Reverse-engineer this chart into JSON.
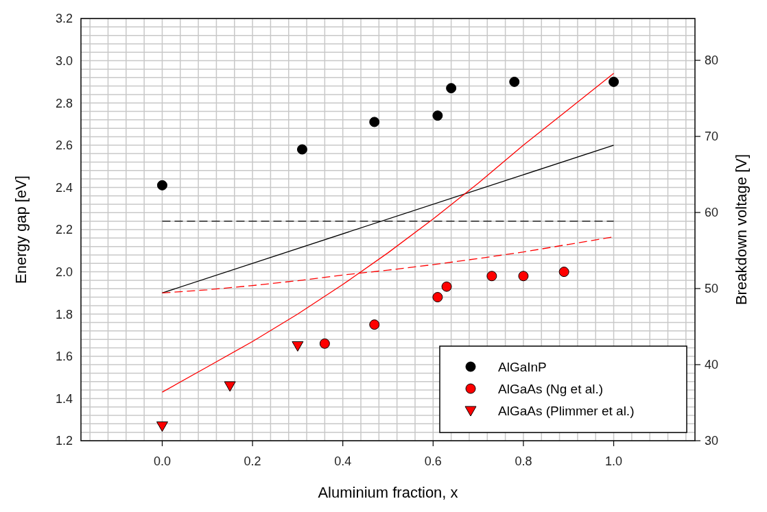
{
  "chart_data": {
    "type": "scatter",
    "xlabel": "Aluminium fraction, x",
    "ylabel": "Energy gap [eV]",
    "y2label": "Breakdown voltage [V]",
    "xlim": [
      -0.18,
      1.18
    ],
    "ylim": [
      1.2,
      3.2
    ],
    "y2lim": [
      30,
      85.5
    ],
    "xticks": [
      {
        "value": -0.16,
        "label": null
      },
      {
        "value": -0.12,
        "label": null
      },
      {
        "value": -0.08,
        "label": null
      },
      {
        "value": -0.04,
        "label": null
      },
      {
        "value": 0,
        "label": "0.0"
      },
      {
        "value": 0.04,
        "label": null
      },
      {
        "value": 0.08,
        "label": null
      },
      {
        "value": 0.12,
        "label": null
      },
      {
        "value": 0.16,
        "label": null
      },
      {
        "value": 0.2,
        "label": "0.2"
      },
      {
        "value": 0.24,
        "label": null
      },
      {
        "value": 0.28,
        "label": null
      },
      {
        "value": 0.32,
        "label": null
      },
      {
        "value": 0.36,
        "label": null
      },
      {
        "value": 0.4,
        "label": "0.4"
      },
      {
        "value": 0.44,
        "label": null
      },
      {
        "value": 0.48,
        "label": null
      },
      {
        "value": 0.52,
        "label": null
      },
      {
        "value": 0.56,
        "label": null
      },
      {
        "value": 0.6,
        "label": "0.6"
      },
      {
        "value": 0.64,
        "label": null
      },
      {
        "value": 0.68,
        "label": null
      },
      {
        "value": 0.72,
        "label": null
      },
      {
        "value": 0.76,
        "label": null
      },
      {
        "value": 0.8,
        "label": "0.8"
      },
      {
        "value": 0.84,
        "label": null
      },
      {
        "value": 0.88,
        "label": null
      },
      {
        "value": 0.92,
        "label": null
      },
      {
        "value": 0.96,
        "label": null
      },
      {
        "value": 1,
        "label": "1.0"
      },
      {
        "value": 1.04,
        "label": null
      },
      {
        "value": 1.08,
        "label": null
      },
      {
        "value": 1.12,
        "label": null
      },
      {
        "value": 1.16,
        "label": null
      }
    ],
    "yticks": [
      {
        "value": 1.2,
        "label": "1.2"
      },
      {
        "value": 1.24,
        "label": null
      },
      {
        "value": 1.28,
        "label": null
      },
      {
        "value": 1.32,
        "label": null
      },
      {
        "value": 1.36,
        "label": null
      },
      {
        "value": 1.4,
        "label": "1.4"
      },
      {
        "value": 1.44,
        "label": null
      },
      {
        "value": 1.48,
        "label": null
      },
      {
        "value": 1.52,
        "label": null
      },
      {
        "value": 1.56,
        "label": null
      },
      {
        "value": 1.6,
        "label": "1.6"
      },
      {
        "value": 1.64,
        "label": null
      },
      {
        "value": 1.68,
        "label": null
      },
      {
        "value": 1.72,
        "label": null
      },
      {
        "value": 1.76,
        "label": null
      },
      {
        "value": 1.8,
        "label": "1.8"
      },
      {
        "value": 1.84,
        "label": null
      },
      {
        "value": 1.88,
        "label": null
      },
      {
        "value": 1.92,
        "label": null
      },
      {
        "value": 1.96,
        "label": null
      },
      {
        "value": 2,
        "label": "2.0"
      },
      {
        "value": 2.04,
        "label": null
      },
      {
        "value": 2.08,
        "label": null
      },
      {
        "value": 2.12,
        "label": null
      },
      {
        "value": 2.16,
        "label": null
      },
      {
        "value": 2.2,
        "label": "2.2"
      },
      {
        "value": 2.24,
        "label": null
      },
      {
        "value": 2.28,
        "label": null
      },
      {
        "value": 2.32,
        "label": null
      },
      {
        "value": 2.36,
        "label": null
      },
      {
        "value": 2.4,
        "label": "2.4"
      },
      {
        "value": 2.44,
        "label": null
      },
      {
        "value": 2.48,
        "label": null
      },
      {
        "value": 2.52,
        "label": null
      },
      {
        "value": 2.56,
        "label": null
      },
      {
        "value": 2.6,
        "label": "2.6"
      },
      {
        "value": 2.64,
        "label": null
      },
      {
        "value": 2.68,
        "label": null
      },
      {
        "value": 2.72,
        "label": null
      },
      {
        "value": 2.76,
        "label": null
      },
      {
        "value": 2.8,
        "label": "2.8"
      },
      {
        "value": 2.84,
        "label": null
      },
      {
        "value": 2.88,
        "label": null
      },
      {
        "value": 2.92,
        "label": null
      },
      {
        "value": 2.96,
        "label": null
      },
      {
        "value": 3,
        "label": "3.0"
      },
      {
        "value": 3.04,
        "label": null
      },
      {
        "value": 3.08,
        "label": null
      },
      {
        "value": 3.12,
        "label": null
      },
      {
        "value": 3.16,
        "label": null
      },
      {
        "value": 3.2,
        "label": "3.2"
      }
    ],
    "y2ticks": [
      30,
      40,
      50,
      60,
      70,
      80
    ],
    "grid": true,
    "legend": "bottom right",
    "series": [
      {
        "name": "AlGaInP",
        "color": "#000000",
        "marker": "circle",
        "x": [
          0,
          0.31,
          0.47,
          0.61,
          0.64,
          0.78,
          1.0
        ],
        "values": [
          2.41,
          2.58,
          2.71,
          2.74,
          2.87,
          2.9,
          2.9
        ]
      },
      {
        "name": "AlGaAs (Ng et al.)",
        "color": "#ff0000",
        "marker": "circle",
        "x": [
          0.36,
          0.47,
          0.61,
          0.63,
          0.73,
          0.8,
          0.89
        ],
        "values": [
          1.66,
          1.75,
          1.88,
          1.93,
          1.98,
          1.98,
          2.0
        ]
      },
      {
        "name": "AlGaAs (Plimmer et al.)",
        "color": "#ff0000",
        "marker": "triangle",
        "x": [
          0,
          0.15,
          0.3
        ],
        "values": [
          1.27,
          1.46,
          1.65
        ]
      },
      {
        "type": "line",
        "color": "#000000",
        "line_style": "solid",
        "x": [
          0,
          1
        ],
        "values": [
          1.9,
          2.6
        ]
      },
      {
        "type": "line",
        "color": "#000000",
        "line_style": "dashed",
        "x": [
          0,
          1
        ],
        "values": [
          2.24,
          2.24
        ]
      },
      {
        "type": "line",
        "color": "#ff0000",
        "line_style": "solid",
        "x": [
          0,
          0.1,
          0.2,
          0.3,
          0.4,
          0.5,
          0.6,
          0.7,
          0.8,
          0.9,
          1.0
        ],
        "values": [
          1.43,
          1.55,
          1.67,
          1.8,
          1.94,
          2.09,
          2.25,
          2.42,
          2.6,
          2.77,
          2.94
        ]
      },
      {
        "type": "line",
        "color": "#ff0000",
        "line_style": "dashed",
        "x": [
          0,
          0.1,
          0.2,
          0.3,
          0.4,
          0.5,
          0.6,
          0.7,
          0.8,
          0.9,
          1.0
        ],
        "values": [
          1.9,
          1.915,
          1.935,
          1.958,
          1.985,
          2.008,
          2.034,
          2.063,
          2.094,
          2.13,
          2.166
        ]
      }
    ]
  }
}
